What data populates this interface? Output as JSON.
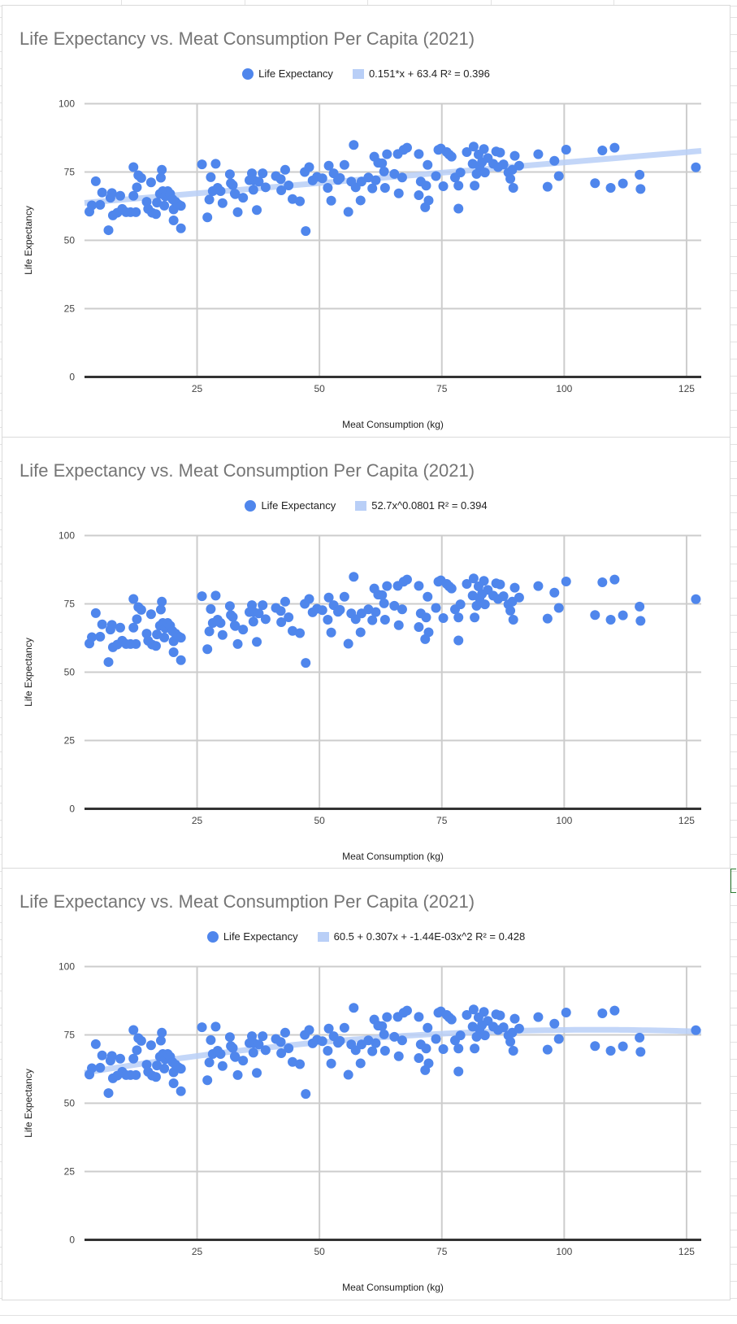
{
  "colors": {
    "point": "#4f86ec",
    "trendline": "#b9cff7",
    "grid": "#cccccc",
    "baseline": "#333333",
    "title": "#757575"
  },
  "chart_data": [
    {
      "type": "scatter",
      "title": "Life Expectancy vs. Meat Consumption Per Capita (2021)",
      "xlabel": "Meat Consumption (kg)",
      "ylabel": "Life Expectancy",
      "xlim": [
        2,
        128
      ],
      "ylim": [
        0,
        100
      ],
      "xticks": [
        25,
        50,
        75,
        100,
        125
      ],
      "yticks": [
        0,
        25,
        50,
        75,
        100
      ],
      "grid": true,
      "legend_position": "top",
      "legend": [
        "Life Expectancy",
        "0.151*x + 63.4 R² = 0.396"
      ],
      "trendline": {
        "type": "linear",
        "coefficients": [
          63.4,
          0.151
        ],
        "visible": true
      },
      "series": [
        {
          "name": "Life Expectancy",
          "points": "shared"
        }
      ]
    },
    {
      "type": "scatter",
      "title": "Life Expectancy vs. Meat Consumption Per Capita (2021)",
      "xlabel": "Meat Consumption (kg)",
      "ylabel": "Life Expectancy",
      "xlim": [
        2,
        128
      ],
      "ylim": [
        0,
        100
      ],
      "xticks": [
        25,
        50,
        75,
        100,
        125
      ],
      "yticks": [
        0,
        25,
        50,
        75,
        100
      ],
      "grid": true,
      "legend_position": "top",
      "legend": [
        "Life Expectancy",
        "52.7x^0.0801 R² = 0.394"
      ],
      "trendline": {
        "type": "power",
        "coefficients": [
          52.7,
          0.0801
        ],
        "visible": false
      },
      "series": [
        {
          "name": "Life Expectancy",
          "points": "shared"
        }
      ]
    },
    {
      "type": "scatter",
      "title": "Life Expectancy vs. Meat Consumption Per Capita (2021)",
      "xlabel": "Meat Consumption (kg)",
      "ylabel": "Life Expectancy",
      "xlim": [
        2,
        128
      ],
      "ylim": [
        0,
        100
      ],
      "xticks": [
        25,
        50,
        75,
        100,
        125
      ],
      "yticks": [
        0,
        25,
        50,
        75,
        100
      ],
      "grid": true,
      "legend_position": "top",
      "legend": [
        "Life Expectancy",
        "60.5 + 0.307x + -1.44E-03x^2 R² = 0.428"
      ],
      "trendline": {
        "type": "polynomial",
        "coefficients": [
          60.5,
          0.307,
          -0.00144
        ],
        "visible": true
      },
      "series": [
        {
          "name": "Life Expectancy",
          "points": "shared"
        }
      ]
    }
  ],
  "shared_points": [
    [
      3.0,
      60.5
    ],
    [
      3.5,
      62.8
    ],
    [
      4.3,
      71.6
    ],
    [
      5.2,
      63
    ],
    [
      5.6,
      67.5
    ],
    [
      6.9,
      53.7
    ],
    [
      7.3,
      65.6
    ],
    [
      7.6,
      67.3
    ],
    [
      7.8,
      59.1
    ],
    [
      8.7,
      60.1
    ],
    [
      9.3,
      66.3
    ],
    [
      9.7,
      61.5
    ],
    [
      10.5,
      60.3
    ],
    [
      11.4,
      60.3
    ],
    [
      12,
      76.8
    ],
    [
      12,
      66.3
    ],
    [
      12.5,
      60.3
    ],
    [
      12.7,
      69.4
    ],
    [
      13,
      73.8
    ],
    [
      13.6,
      72.8
    ],
    [
      14.7,
      64.1
    ],
    [
      15,
      61.5
    ],
    [
      15.6,
      71.2
    ],
    [
      15.8,
      60.1
    ],
    [
      16.6,
      59.6
    ],
    [
      16.8,
      63.8
    ],
    [
      17.4,
      67
    ],
    [
      17.6,
      72.9
    ],
    [
      17.8,
      75.8
    ],
    [
      18,
      68
    ],
    [
      18.3,
      62.7
    ],
    [
      18.5,
      66.1
    ],
    [
      19,
      68
    ],
    [
      19.5,
      67
    ],
    [
      20,
      65
    ],
    [
      20.2,
      61.3
    ],
    [
      20.2,
      57.3
    ],
    [
      20.6,
      64.1
    ],
    [
      21.2,
      63.1
    ],
    [
      21.7,
      54.4
    ],
    [
      21.7,
      62.6
    ],
    [
      26,
      77.8
    ],
    [
      27.1,
      58.4
    ],
    [
      27.5,
      64.9
    ],
    [
      27.8,
      73.1
    ],
    [
      28.2,
      68
    ],
    [
      28.8,
      78
    ],
    [
      29.2,
      69.2
    ],
    [
      29.8,
      68
    ],
    [
      30.2,
      63.6
    ],
    [
      31.7,
      74.2
    ],
    [
      31.9,
      70.9
    ],
    [
      32.3,
      70.2
    ],
    [
      32.7,
      67.1
    ],
    [
      32.8,
      66.9
    ],
    [
      33.3,
      60.3
    ],
    [
      34.4,
      65.6
    ],
    [
      35.7,
      72
    ],
    [
      36.2,
      74.5
    ],
    [
      36.5,
      68.5
    ],
    [
      36.6,
      72
    ],
    [
      37.2,
      61.1
    ],
    [
      37.6,
      71.5
    ],
    [
      38.4,
      74.5
    ],
    [
      39,
      69.4
    ],
    [
      41.1,
      73.5
    ],
    [
      42.1,
      72.4
    ],
    [
      42.2,
      68.3
    ],
    [
      43,
      75.8
    ],
    [
      43.7,
      70.1
    ],
    [
      44.5,
      65.1
    ],
    [
      46,
      64.3
    ],
    [
      47,
      75
    ],
    [
      47.2,
      53.4
    ],
    [
      47.9,
      76.8
    ],
    [
      48.6,
      71.9
    ],
    [
      49.5,
      73.2
    ],
    [
      50.6,
      72.7
    ],
    [
      51.7,
      69.2
    ],
    [
      51.9,
      77.3
    ],
    [
      52.4,
      64.5
    ],
    [
      52.9,
      74.5
    ],
    [
      53.8,
      72.1
    ],
    [
      54.2,
      72.8
    ],
    [
      55.1,
      77.6
    ],
    [
      55.9,
      60.4
    ],
    [
      56.5,
      71.5
    ],
    [
      57,
      84.9
    ],
    [
      57.4,
      69.4
    ],
    [
      58.4,
      64.6
    ],
    [
      58.6,
      71.5
    ],
    [
      60,
      73
    ],
    [
      60.8,
      69
    ],
    [
      61.2,
      80.6
    ],
    [
      61.5,
      72
    ],
    [
      62,
      78.4
    ],
    [
      62.8,
      78.2
    ],
    [
      63.2,
      75.2
    ],
    [
      63.4,
      69.2
    ],
    [
      63.8,
      81.5
    ],
    [
      65.3,
      74.3
    ],
    [
      66.2,
      67.2
    ],
    [
      66,
      81.6
    ],
    [
      66.9,
      73
    ],
    [
      67.2,
      83.1
    ],
    [
      67.9,
      83.9
    ],
    [
      70.3,
      81.6
    ],
    [
      70.3,
      66.5
    ],
    [
      70.7,
      71.5
    ],
    [
      71.6,
      62.1
    ],
    [
      71.8,
      70
    ],
    [
      72.1,
      77.6
    ],
    [
      72.3,
      64.6
    ],
    [
      73.8,
      73.5
    ],
    [
      74.3,
      83.1
    ],
    [
      74.8,
      83.6
    ],
    [
      75.3,
      69.8
    ],
    [
      76,
      82.3
    ],
    [
      76.5,
      81.4
    ],
    [
      77,
      80.6
    ],
    [
      77.7,
      73
    ],
    [
      78.4,
      61.6
    ],
    [
      78.4,
      70
    ],
    [
      78.8,
      74.8
    ],
    [
      80.1,
      82.3
    ],
    [
      81.3,
      78
    ],
    [
      81.5,
      84.3
    ],
    [
      81.7,
      70
    ],
    [
      82.1,
      74.3
    ],
    [
      82.5,
      81.4
    ],
    [
      82.7,
      77.1
    ],
    [
      83.2,
      78.6
    ],
    [
      83.6,
      83.4
    ],
    [
      83.8,
      74.8
    ],
    [
      84.4,
      80.1
    ],
    [
      85.5,
      78
    ],
    [
      86.1,
      82.5
    ],
    [
      86.5,
      76.8
    ],
    [
      86.9,
      82.1
    ],
    [
      87.6,
      77.8
    ],
    [
      88.6,
      74.8
    ],
    [
      89,
      72.5
    ],
    [
      89.4,
      75.8
    ],
    [
      89.6,
      69.2
    ],
    [
      89.9,
      80.9
    ],
    [
      90.8,
      77.3
    ],
    [
      94.7,
      81.5
    ],
    [
      96.6,
      69.6
    ],
    [
      98,
      79.1
    ],
    [
      98.9,
      73.5
    ],
    [
      100.4,
      83.2
    ],
    [
      106.3,
      70.9
    ],
    [
      107.8,
      82.9
    ],
    [
      109.5,
      69.2
    ],
    [
      110.3,
      83.9
    ],
    [
      112,
      70.8
    ],
    [
      115.4,
      74
    ],
    [
      115.6,
      68.8
    ],
    [
      126.9,
      76.7
    ]
  ]
}
